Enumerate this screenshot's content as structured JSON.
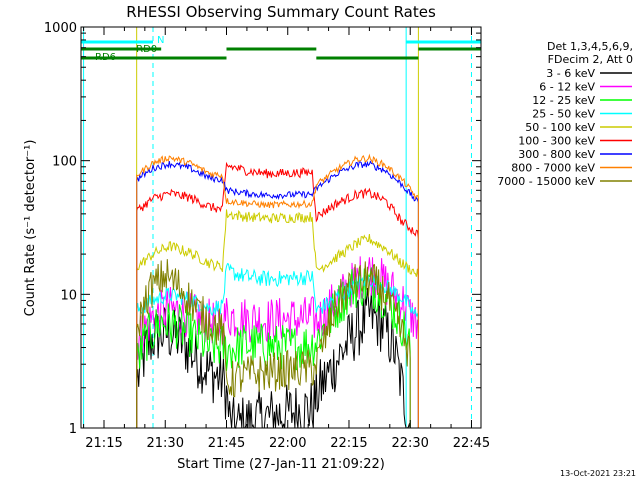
{
  "chart_data": {
    "type": "line",
    "title": "RHESSI Observing Summary Count Rates",
    "xlabel": "Start Time (27-Jan-11 21:09:22)",
    "ylabel": "Count Rate (s⁻¹ detector⁻¹)",
    "y_scale": "log",
    "ylim": [
      1,
      1000
    ],
    "x_unit": "minutes",
    "xlim": [
      "21:09:22",
      "22:47:20"
    ],
    "x_ticks": [
      "21:15",
      "21:30",
      "21:45",
      "22:00",
      "22:15",
      "22:30",
      "22:45"
    ],
    "y_ticks": [
      "1",
      "10",
      "100",
      "1000"
    ],
    "timestamp": "13-Oct-2021 23:21",
    "legend_header": [
      "Det 1,3,4,5,6,9,",
      "FDecim 2, Att 0"
    ],
    "legend_position": "right",
    "series": [
      {
        "name": "3 - 6 keV",
        "color": "#000000",
        "points": [
          [
            "21:23",
            2.2
          ],
          [
            "21:25",
            3.6
          ],
          [
            "21:27",
            4.8
          ],
          [
            "21:30",
            5.2
          ],
          [
            "21:33",
            4.8
          ],
          [
            "21:37",
            3.5
          ],
          [
            "21:41",
            2.6
          ],
          [
            "21:44",
            2.3
          ],
          [
            "21:45",
            1.8
          ],
          [
            "21:46",
            1.0
          ],
          [
            "21:50",
            1.1
          ],
          [
            "21:55",
            1.2
          ],
          [
            "22:00",
            1.3
          ],
          [
            "22:06",
            1.4
          ],
          [
            "22:08",
            2.0
          ],
          [
            "22:12",
            3.2
          ],
          [
            "22:16",
            5.0
          ],
          [
            "22:20",
            7.0
          ],
          [
            "22:23",
            6.0
          ],
          [
            "22:26",
            4.0
          ],
          [
            "22:28",
            2.0
          ],
          [
            "22:30",
            1.0
          ]
        ]
      },
      {
        "name": "6 - 12 keV",
        "color": "#ff00ff",
        "points": [
          [
            "21:23",
            4.5
          ],
          [
            "21:27",
            6.8
          ],
          [
            "21:31",
            7.8
          ],
          [
            "21:36",
            7.0
          ],
          [
            "21:41",
            6.2
          ],
          [
            "21:44",
            6.0
          ],
          [
            "21:45",
            7.0
          ],
          [
            "21:50",
            6.5
          ],
          [
            "21:55",
            6.4
          ],
          [
            "22:00",
            6.5
          ],
          [
            "22:06",
            6.6
          ],
          [
            "22:07",
            6.2
          ],
          [
            "22:12",
            9.0
          ],
          [
            "22:17",
            13.0
          ],
          [
            "22:20",
            15.0
          ],
          [
            "22:24",
            12.0
          ],
          [
            "22:28",
            9.0
          ],
          [
            "22:30",
            7.0
          ],
          [
            "22:32",
            6.0
          ]
        ]
      },
      {
        "name": "12 - 25 keV",
        "color": "#00ff00",
        "points": [
          [
            "21:23",
            3.0
          ],
          [
            "21:25",
            4.5
          ],
          [
            "21:29",
            6.2
          ],
          [
            "21:33",
            5.8
          ],
          [
            "21:37",
            4.8
          ],
          [
            "21:41",
            4.0
          ],
          [
            "21:44",
            4.1
          ],
          [
            "21:45",
            3.8
          ],
          [
            "21:50",
            4.2
          ],
          [
            "21:55",
            4.1
          ],
          [
            "22:00",
            4.0
          ],
          [
            "22:06",
            4.2
          ],
          [
            "22:07",
            4.5
          ],
          [
            "22:12",
            8.0
          ],
          [
            "22:16",
            11.5
          ],
          [
            "22:20",
            12.0
          ],
          [
            "22:24",
            9.5
          ],
          [
            "22:28",
            6.0
          ],
          [
            "22:30",
            4.0
          ]
        ]
      },
      {
        "name": "25 - 50 keV",
        "color": "#00ffff",
        "points": [
          [
            "21:23",
            7.5
          ],
          [
            "21:27",
            9.0
          ],
          [
            "21:31",
            10.0
          ],
          [
            "21:36",
            9.2
          ],
          [
            "21:41",
            7.8
          ],
          [
            "21:44",
            8.2
          ],
          [
            "21:45",
            15.0
          ],
          [
            "21:50",
            13.5
          ],
          [
            "21:55",
            13.0
          ],
          [
            "22:00",
            13.2
          ],
          [
            "22:06",
            13.5
          ],
          [
            "22:07",
            7.5
          ],
          [
            "22:12",
            9.5
          ],
          [
            "22:17",
            12.0
          ],
          [
            "22:20",
            13.0
          ],
          [
            "22:24",
            11.5
          ],
          [
            "22:28",
            9.5
          ],
          [
            "22:32",
            6.5
          ]
        ]
      },
      {
        "name": "50 - 100 keV",
        "color": "#cccc00",
        "points": [
          [
            "21:23",
            16.0
          ],
          [
            "21:27",
            20.0
          ],
          [
            "21:31",
            23.0
          ],
          [
            "21:36",
            20.5
          ],
          [
            "21:41",
            17.0
          ],
          [
            "21:44",
            16.0
          ],
          [
            "21:45",
            40.0
          ],
          [
            "21:50",
            38.0
          ],
          [
            "21:55",
            37.0
          ],
          [
            "22:00",
            37.5
          ],
          [
            "22:06",
            38.0
          ],
          [
            "22:07",
            15.0
          ],
          [
            "22:12",
            19.0
          ],
          [
            "22:17",
            24.0
          ],
          [
            "22:20",
            26.0
          ],
          [
            "22:24",
            22.0
          ],
          [
            "22:28",
            17.0
          ],
          [
            "22:32",
            14.0
          ]
        ]
      },
      {
        "name": "100 - 300 keV",
        "color": "#ff0000",
        "points": [
          [
            "21:23",
            42.0
          ],
          [
            "21:27",
            52.0
          ],
          [
            "21:31",
            57.0
          ],
          [
            "21:36",
            53.0
          ],
          [
            "21:41",
            45.0
          ],
          [
            "21:44",
            43.0
          ],
          [
            "21:45",
            92.0
          ],
          [
            "21:50",
            84.0
          ],
          [
            "21:55",
            80.0
          ],
          [
            "22:00",
            80.5
          ],
          [
            "22:06",
            82.0
          ],
          [
            "22:07",
            38.0
          ],
          [
            "22:12",
            48.0
          ],
          [
            "22:17",
            56.0
          ],
          [
            "22:20",
            57.0
          ],
          [
            "22:24",
            50.0
          ],
          [
            "22:28",
            35.0
          ],
          [
            "22:32",
            28.0
          ]
        ]
      },
      {
        "name": "300 - 800 keV",
        "color": "#0000ff",
        "points": [
          [
            "21:23",
            72.0
          ],
          [
            "21:27",
            88.0
          ],
          [
            "21:31",
            95.0
          ],
          [
            "21:36",
            88.0
          ],
          [
            "21:41",
            74.0
          ],
          [
            "21:44",
            72.0
          ],
          [
            "21:45",
            60.0
          ],
          [
            "21:50",
            57.0
          ],
          [
            "21:55",
            55.0
          ],
          [
            "22:00",
            55.5
          ],
          [
            "22:06",
            56.0
          ],
          [
            "22:07",
            62.0
          ],
          [
            "22:12",
            80.0
          ],
          [
            "22:17",
            93.0
          ],
          [
            "22:20",
            94.0
          ],
          [
            "22:24",
            84.0
          ],
          [
            "22:28",
            66.0
          ],
          [
            "22:32",
            48.0
          ]
        ]
      },
      {
        "name": "800 - 7000 keV",
        "color": "#ff8000",
        "points": [
          [
            "21:23",
            78.0
          ],
          [
            "21:27",
            96.0
          ],
          [
            "21:31",
            106.0
          ],
          [
            "21:36",
            96.0
          ],
          [
            "21:41",
            80.0
          ],
          [
            "21:44",
            78.0
          ],
          [
            "21:45",
            50.0
          ],
          [
            "21:50",
            48.0
          ],
          [
            "21:55",
            46.5
          ],
          [
            "22:00",
            47.0
          ],
          [
            "22:06",
            47.5
          ],
          [
            "22:07",
            66.0
          ],
          [
            "22:12",
            86.0
          ],
          [
            "22:17",
            103.0
          ],
          [
            "22:20",
            104.0
          ],
          [
            "22:24",
            92.0
          ],
          [
            "22:28",
            72.0
          ],
          [
            "22:32",
            51.0
          ]
        ]
      },
      {
        "name": "7000 - 15000 keV",
        "color": "#808000",
        "points": [
          [
            "21:23",
            5.5
          ],
          [
            "21:26",
            10.5
          ],
          [
            "21:30",
            14.0
          ],
          [
            "21:34",
            11.0
          ],
          [
            "21:38",
            7.5
          ],
          [
            "21:42",
            5.8
          ],
          [
            "21:44",
            5.6
          ],
          [
            "21:45",
            2.2
          ],
          [
            "21:50",
            2.5
          ],
          [
            "21:55",
            2.6
          ],
          [
            "22:00",
            2.7
          ],
          [
            "22:06",
            2.8
          ],
          [
            "22:07",
            3.0
          ],
          [
            "22:12",
            8.5
          ],
          [
            "22:16",
            12.0
          ],
          [
            "22:20",
            13.0
          ],
          [
            "22:24",
            10.0
          ],
          [
            "22:28",
            5.0
          ],
          [
            "22:30",
            3.5
          ]
        ]
      }
    ],
    "flags": [
      {
        "name": "N",
        "color": "#00ffff",
        "level": "upper",
        "intervals": [
          [
            "21:09:22",
            "21:27"
          ],
          [
            "22:29",
            "22:47:20"
          ]
        ]
      },
      {
        "name": "RD0",
        "color": "#008000",
        "level": "middle",
        "intervals": [
          [
            "21:09:22",
            "21:29"
          ],
          [
            "21:45",
            "22:07"
          ],
          [
            "22:32",
            "22:47:20"
          ]
        ]
      },
      {
        "name": "RD6",
        "color": "#008000",
        "level": "lower",
        "intervals": [
          [
            "21:09:22",
            "21:45"
          ],
          [
            "22:07",
            "22:32"
          ]
        ]
      }
    ],
    "vertical_markers": [
      {
        "color": "#00ffff",
        "style": "solid",
        "time": "21:10"
      },
      {
        "color": "#00ffff",
        "style": "dashed",
        "time": "21:27"
      },
      {
        "color": "#00ffff",
        "style": "solid",
        "time": "22:29"
      },
      {
        "color": "#00ffff",
        "style": "dashed",
        "time": "22:45"
      },
      {
        "color": "#cccc00",
        "style": "solid",
        "time": "21:23"
      },
      {
        "color": "#cccc00",
        "style": "solid",
        "time": "22:32"
      }
    ]
  }
}
